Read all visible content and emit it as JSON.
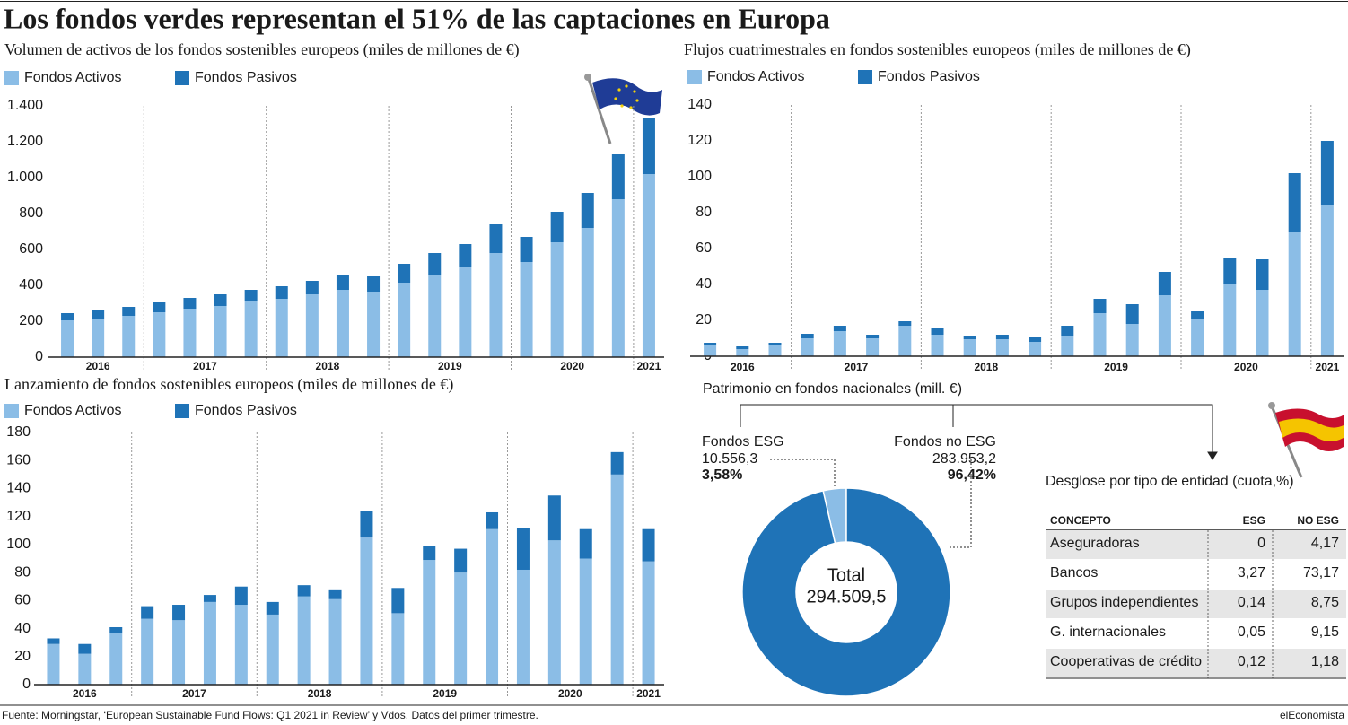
{
  "title": "Los fondos verdes representan el 51% de las captaciones en Europa",
  "chart_data": [
    {
      "type": "bar",
      "stacked": true,
      "title": "Volumen de activos de los fondos sostenibles europeos (miles de millones de €)",
      "categories": [
        "2016",
        null,
        null,
        "2017",
        null,
        null,
        null,
        "2018",
        null,
        null,
        null,
        "2019",
        null,
        null,
        null,
        "2020",
        null,
        null,
        null,
        "2021"
      ],
      "series": [
        {
          "name": "Fondos Activos",
          "color": "#8bbde6",
          "values": [
            205,
            215,
            230,
            250,
            270,
            285,
            310,
            325,
            350,
            375,
            365,
            415,
            460,
            500,
            580,
            530,
            640,
            720,
            880,
            1020
          ]
        },
        {
          "name": "Fondos Pasivos",
          "color": "#1f73b7",
          "values": [
            40,
            45,
            50,
            55,
            60,
            65,
            65,
            70,
            75,
            85,
            85,
            105,
            120,
            130,
            160,
            140,
            170,
            195,
            250,
            310
          ]
        }
      ],
      "ylim": [
        0,
        1400
      ],
      "yticks": [
        0,
        200,
        400,
        600,
        800,
        {
          "value": 1000,
          "label": "1.000"
        },
        {
          "value": 1200,
          "label": "1.200"
        },
        {
          "value": 1400,
          "label": "1.400"
        }
      ]
    },
    {
      "type": "bar",
      "stacked": true,
      "title": "Flujos cuatrimestrales en fondos sostenibles europeos (miles de millones de €)",
      "categories": [
        "2016",
        null,
        null,
        "2017",
        null,
        null,
        null,
        "2018",
        null,
        null,
        null,
        "2019",
        null,
        null,
        null,
        "2020",
        null,
        null,
        null,
        "2021"
      ],
      "series": [
        {
          "name": "Fondos Activos",
          "color": "#8bbde6",
          "values": [
            6,
            4,
            6,
            10,
            14,
            10,
            17,
            12,
            9.5,
            9.5,
            8,
            11,
            24,
            18,
            34,
            21,
            40,
            37,
            69,
            84
          ]
        },
        {
          "name": "Fondos Pasivos",
          "color": "#1f73b7",
          "values": [
            1.5,
            1.5,
            1.5,
            2.5,
            3,
            2,
            2.5,
            4,
            1.5,
            2.5,
            2.5,
            6,
            8,
            11,
            13,
            4,
            15,
            17,
            33,
            36
          ]
        }
      ],
      "ylim": [
        0,
        140
      ],
      "yticks": [
        0,
        20,
        40,
        60,
        80,
        100,
        120,
        140
      ]
    },
    {
      "type": "bar",
      "stacked": true,
      "title": "Lanzamiento de fondos sostenibles europeos (miles de millones de €)",
      "categories": [
        "2016",
        null,
        null,
        "2017",
        null,
        null,
        null,
        "2018",
        null,
        null,
        null,
        "2019",
        null,
        null,
        null,
        "2020",
        null,
        null,
        null,
        "2021"
      ],
      "series": [
        {
          "name": "Fondos Activos",
          "color": "#8bbde6",
          "values": [
            29,
            22,
            37,
            47,
            46,
            59,
            57,
            50,
            63,
            61,
            105,
            51,
            89,
            80,
            111,
            82,
            103,
            90,
            150,
            88
          ]
        },
        {
          "name": "Fondos Pasivos",
          "color": "#1f73b7",
          "values": [
            4,
            7,
            4,
            9,
            11,
            5,
            13,
            9,
            8,
            7,
            19,
            18,
            10,
            17,
            12,
            30,
            32,
            21,
            16,
            23
          ]
        }
      ],
      "ylim": [
        0,
        180
      ],
      "yticks": [
        0,
        20,
        40,
        60,
        80,
        100,
        120,
        140,
        160,
        180
      ]
    },
    {
      "type": "pie",
      "title": "Patrimonio en fondos nacionales (mill. €)",
      "categories": [
        "Fondos ESG",
        "Fondos no ESG"
      ],
      "values": [
        10556.3,
        283953.2
      ],
      "value_labels": [
        "10.556,3",
        "283.953,2"
      ],
      "percentages": [
        3.58,
        96.42
      ],
      "percentage_labels": [
        "3,58%",
        "96,42%"
      ],
      "colors": [
        "#8bbde6",
        "#1f73b7"
      ],
      "center_label": "Total",
      "total": 294509.5,
      "total_label": "294.509,5"
    }
  ],
  "table": {
    "title": "Desglose por tipo de entidad (cuota,%)",
    "columns": [
      "CONCEPTO",
      "ESG",
      "NO ESG"
    ],
    "rows": [
      [
        "Aseguradoras",
        "0",
        "4,17"
      ],
      [
        "Bancos",
        "3,27",
        "73,17"
      ],
      [
        "Grupos independientes",
        "0,14",
        "8,75"
      ],
      [
        "G. internacionales",
        "0,05",
        "9,15"
      ],
      [
        "Cooperativas de crédito",
        "0,12",
        "1,18"
      ]
    ]
  },
  "source": "Fuente: Morningstar, ‘European Sustainable Fund Flows: Q1 2021 in Review’ y Vdos. Datos del primer trimestre.",
  "brand": "elEconomista"
}
